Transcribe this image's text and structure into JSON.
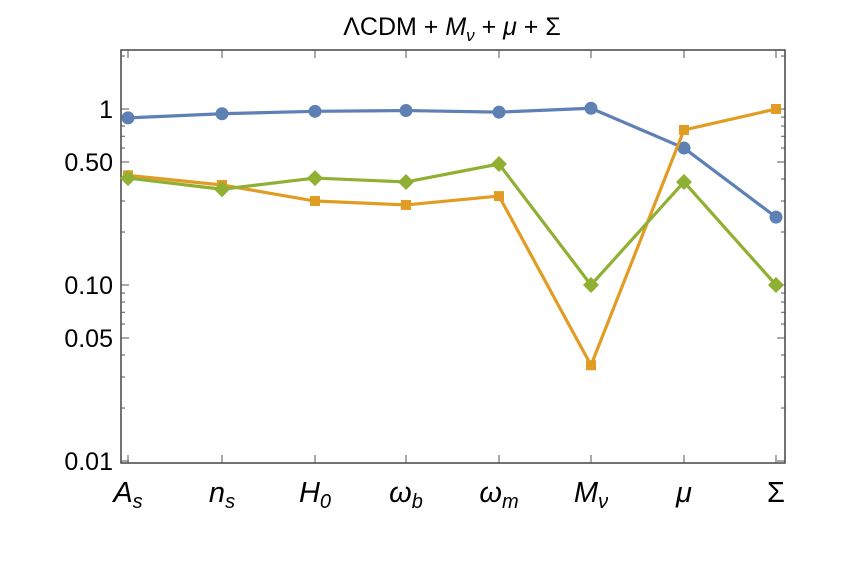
{
  "chart_data": {
    "type": "line",
    "title": "ΛCDM + M_ν + μ + Σ",
    "title_parts": [
      {
        "text": "ΛCDM + ",
        "italic": false
      },
      {
        "text": "M",
        "italic": true
      },
      {
        "text": "ν",
        "italic": true,
        "sub": true
      },
      {
        "text": " + ",
        "italic": false
      },
      {
        "text": "μ",
        "italic": true
      },
      {
        "text": " + Σ",
        "italic": false
      }
    ],
    "xlabel": "",
    "ylabel": "",
    "yscale": "log",
    "ylim": [
      0.01,
      2.16
    ],
    "grid": false,
    "categories": [
      {
        "base": "A",
        "sub": "s",
        "italic": true
      },
      {
        "base": "n",
        "sub": "s",
        "italic": true
      },
      {
        "base": "H",
        "sub": "0",
        "italic": true
      },
      {
        "base": "ω",
        "sub": "b",
        "italic": true
      },
      {
        "base": "ω",
        "sub": "m",
        "italic": true
      },
      {
        "base": "M",
        "sub": "ν",
        "italic": true
      },
      {
        "base": "μ",
        "sub": "",
        "italic": true
      },
      {
        "base": "Σ",
        "sub": "",
        "italic": false
      }
    ],
    "yticks": [
      {
        "value": 1,
        "label": "1"
      },
      {
        "value": 0.5,
        "label": "0.50"
      },
      {
        "value": 0.1,
        "label": "0.10"
      },
      {
        "value": 0.05,
        "label": "0.05"
      },
      {
        "value": 0.01,
        "label": "0.01"
      }
    ],
    "series": [
      {
        "color": "#5e81b5",
        "marker": "circle",
        "values": [
          0.89,
          0.94,
          0.97,
          0.98,
          0.96,
          1.01,
          0.6,
          0.243
        ]
      },
      {
        "color": "#e19c24",
        "marker": "square",
        "values": [
          0.42,
          0.37,
          0.3,
          0.285,
          0.32,
          0.035,
          0.76,
          1.0
        ]
      },
      {
        "color": "#8fb032",
        "marker": "diamond",
        "values": [
          0.405,
          0.35,
          0.405,
          0.385,
          0.487,
          0.1,
          0.385,
          0.1
        ]
      }
    ]
  }
}
